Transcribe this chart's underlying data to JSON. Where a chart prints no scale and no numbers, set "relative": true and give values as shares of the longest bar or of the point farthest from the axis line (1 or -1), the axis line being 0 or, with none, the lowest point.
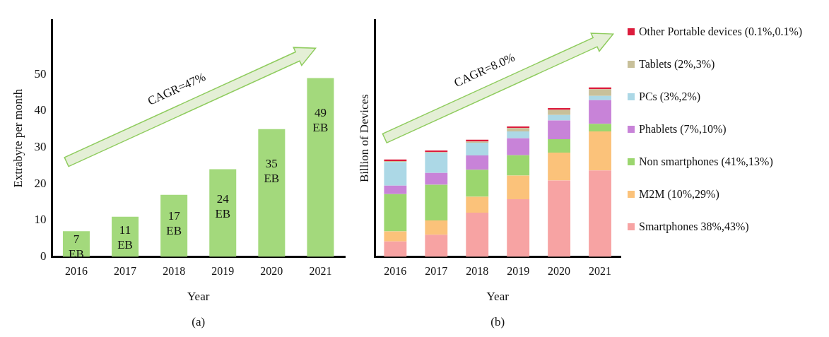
{
  "chart_data": [
    {
      "type": "bar",
      "categories": [
        "2016",
        "2017",
        "2018",
        "2019",
        "2020",
        "2021"
      ],
      "values": [
        7,
        11,
        17,
        24,
        35,
        49
      ],
      "color": "#a3d97c",
      "value_labels": [
        "7 EB",
        "11 EB",
        "17 EB",
        "24 EB",
        "35 EB",
        "49 EB"
      ],
      "xlabel": "Year",
      "ylabel": "Extrabyte per month",
      "ylim": [
        0,
        65
      ],
      "yticks": [
        0,
        10,
        20,
        30,
        40,
        50
      ],
      "grid": false,
      "legend": false,
      "annotations": [
        "CAGR=47%",
        "(a)"
      ]
    },
    {
      "type": "bar",
      "stacked": true,
      "relative": true,
      "categories": [
        "2016",
        "2017",
        "2018",
        "2019",
        "2020",
        "2021"
      ],
      "xlabel": "Year",
      "ylabel": "Billion of Devices",
      "grid": false,
      "legend": "right",
      "annotations": [
        "CAGR=8.0%",
        "(b)"
      ],
      "series": [
        {
          "name": "Smartphones 38%,43%)",
          "color": "#f7a3a3",
          "values": [
            0.09,
            0.13,
            0.26,
            0.34,
            0.45,
            0.51
          ]
        },
        {
          "name": "M2M (10%,29%)",
          "color": "#fbc27a",
          "values": [
            0.06,
            0.085,
            0.094,
            0.14,
            0.165,
            0.23
          ]
        },
        {
          "name": "Non smartphones (41%,13%)",
          "color": "#9bd66e",
          "values": [
            0.22,
            0.21,
            0.16,
            0.12,
            0.08,
            0.045
          ]
        },
        {
          "name": "Phablets (7%,10%)",
          "color": "#c883d8",
          "values": [
            0.05,
            0.07,
            0.085,
            0.1,
            0.11,
            0.14
          ]
        },
        {
          "name": "PCs (3%,2%)",
          "color": "#acd8e6",
          "values": [
            0.14,
            0.12,
            0.075,
            0.04,
            0.033,
            0.025
          ]
        },
        {
          "name": "Tablets (2%,3%)",
          "color": "#c8c09a",
          "values": [
            0.005,
            0.003,
            0.007,
            0.02,
            0.03,
            0.04
          ]
        },
        {
          "name": "Other Portable devices (0.1%,0.1%)",
          "color": "#dc1c3c",
          "values": [
            0.01,
            0.01,
            0.01,
            0.01,
            0.01,
            0.01
          ]
        }
      ]
    }
  ]
}
